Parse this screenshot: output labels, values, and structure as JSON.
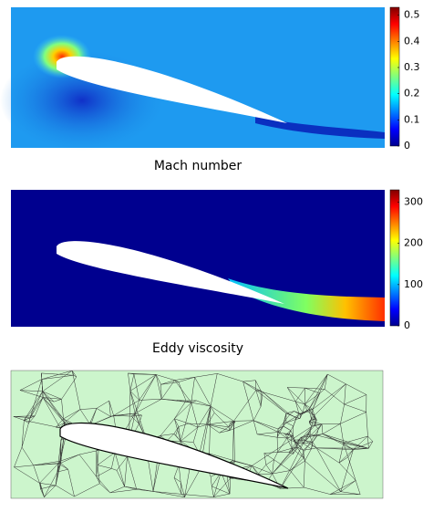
{
  "panels": [
    {
      "caption": "Mach number",
      "colorbar": {
        "range": [
          0,
          0.53
        ],
        "ticks": [
          0,
          0.1,
          0.2,
          0.3,
          0.4,
          0.5
        ]
      }
    },
    {
      "caption": "Eddy viscosity",
      "colorbar": {
        "range": [
          0,
          330
        ],
        "ticks": [
          0,
          100,
          200,
          300
        ]
      }
    }
  ]
}
